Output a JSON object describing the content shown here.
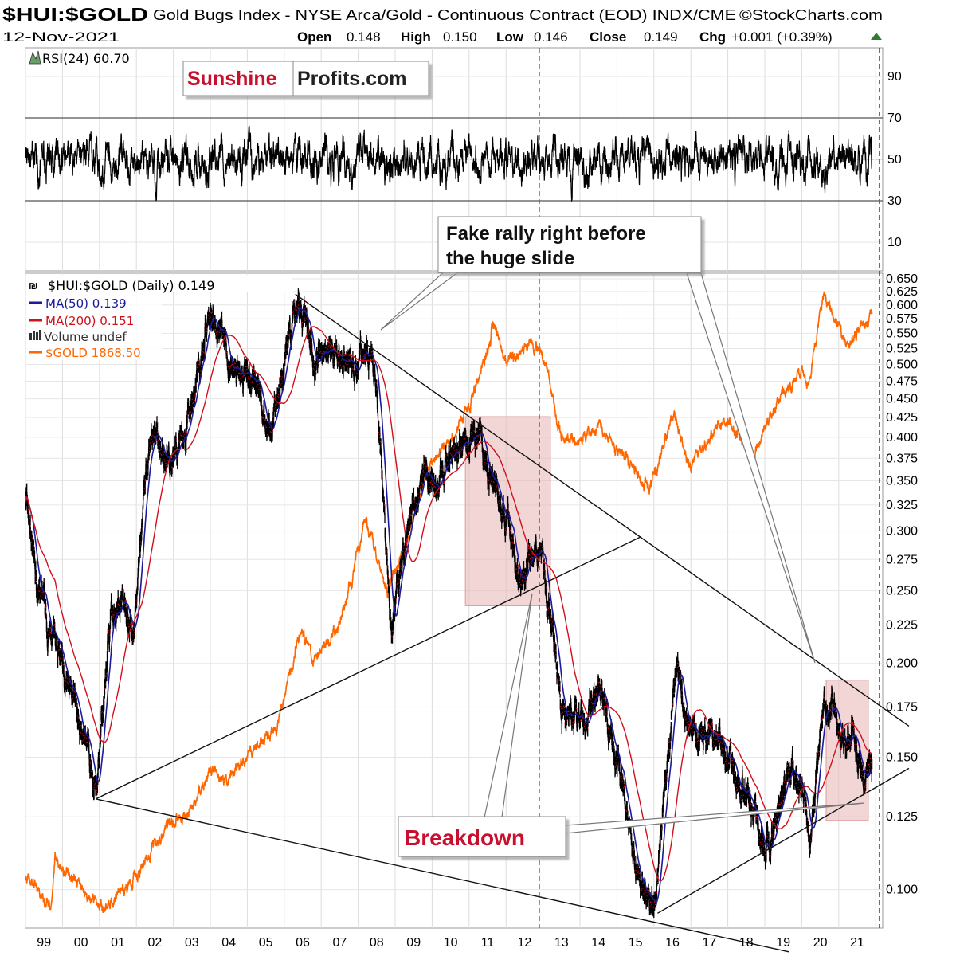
{
  "header": {
    "symbol": "$HUI:$GOLD",
    "description": "Gold Bugs Index - NYSE Arca/Gold - Continuous Contract (EOD) INDX/CME",
    "copyright": "©StockCharts.com",
    "date": "12-Nov-2021",
    "open_label": "Open",
    "open": "0.148",
    "high_label": "High",
    "high": "0.150",
    "low_label": "Low",
    "low": "0.146",
    "close_label": "Close",
    "close": "0.149",
    "chg_label": "Chg",
    "chg": "+0.001 (+0.39%)",
    "chg_icon": "triangle-up-icon"
  },
  "watermark": {
    "part1": "Sunshine",
    "part2": "Profits.com"
  },
  "colors": {
    "price": "#000000",
    "ma50": "#1a1a9c",
    "ma200": "#d0101c",
    "gold": "#ff6600",
    "highlight": "#e8b4b4",
    "annotation_red": "#c8102e",
    "positive": "#2e7d32"
  },
  "chart_data": [
    {
      "type": "line",
      "panel": "rsi",
      "legend": "RSI(24) 60.70",
      "current": 60.7,
      "yticks": [
        "90",
        "70",
        "50",
        "30",
        "10"
      ],
      "reference_lines": [
        70,
        50,
        30
      ],
      "ylim": [
        0,
        100
      ]
    },
    {
      "type": "line",
      "panel": "price",
      "scale": "log",
      "legend": [
        {
          "label": "$HUI:$GOLD (Daily) 0.149",
          "color": "#000000"
        },
        {
          "label": "MA(50) 0.139",
          "color": "#1a1a9c"
        },
        {
          "label": "MA(200) 0.151",
          "color": "#d0101c"
        },
        {
          "label": "Volume undef",
          "color": "#333333"
        },
        {
          "label": "$GOLD 1868.50",
          "color": "#ff6600"
        }
      ],
      "legend_placement": "top-left",
      "xticks": [
        "99",
        "00",
        "01",
        "02",
        "03",
        "04",
        "05",
        "06",
        "07",
        "08",
        "09",
        "10",
        "11",
        "12",
        "13",
        "14",
        "15",
        "16",
        "17",
        "18",
        "19",
        "20",
        "21"
      ],
      "yticks": [
        "0.650",
        "0.625",
        "0.600",
        "0.575",
        "0.550",
        "0.525",
        "0.500",
        "0.475",
        "0.450",
        "0.425",
        "0.400",
        "0.375",
        "0.350",
        "0.325",
        "0.300",
        "0.275",
        "0.250",
        "0.225",
        "0.200",
        "0.175",
        "0.150",
        "0.125",
        "0.100"
      ],
      "ylim": [
        0.09,
        0.65
      ],
      "xlim": [
        1999.0,
        2021.9
      ],
      "hui_gold": [
        [
          1999.0,
          0.34
        ],
        [
          1999.3,
          0.26
        ],
        [
          1999.6,
          0.22
        ],
        [
          2000.0,
          0.2
        ],
        [
          2000.4,
          0.17
        ],
        [
          2000.9,
          0.135
        ],
        [
          2001.3,
          0.22
        ],
        [
          2001.6,
          0.24
        ],
        [
          2001.9,
          0.22
        ],
        [
          2002.4,
          0.42
        ],
        [
          2002.7,
          0.38
        ],
        [
          2003.0,
          0.38
        ],
        [
          2003.5,
          0.43
        ],
        [
          2004.0,
          0.6
        ],
        [
          2004.3,
          0.55
        ],
        [
          2004.8,
          0.48
        ],
        [
          2005.3,
          0.47
        ],
        [
          2005.6,
          0.41
        ],
        [
          2006.0,
          0.5
        ],
        [
          2006.4,
          0.62
        ],
        [
          2006.8,
          0.52
        ],
        [
          2007.3,
          0.53
        ],
        [
          2007.8,
          0.5
        ],
        [
          2008.2,
          0.52
        ],
        [
          2008.5,
          0.48
        ],
        [
          2008.9,
          0.21
        ],
        [
          2009.3,
          0.3
        ],
        [
          2009.8,
          0.36
        ],
        [
          2010.3,
          0.36
        ],
        [
          2010.8,
          0.39
        ],
        [
          2011.3,
          0.4
        ],
        [
          2011.8,
          0.33
        ],
        [
          2012.4,
          0.26
        ],
        [
          2012.8,
          0.29
        ],
        [
          2013.0,
          0.27
        ],
        [
          2013.5,
          0.18
        ],
        [
          2014.0,
          0.17
        ],
        [
          2014.6,
          0.18
        ],
        [
          2015.0,
          0.15
        ],
        [
          2015.6,
          0.1
        ],
        [
          2016.0,
          0.095
        ],
        [
          2016.6,
          0.2
        ],
        [
          2017.0,
          0.16
        ],
        [
          2017.5,
          0.165
        ],
        [
          2018.0,
          0.15
        ],
        [
          2018.7,
          0.125
        ],
        [
          2019.0,
          0.115
        ],
        [
          2019.5,
          0.135
        ],
        [
          2020.0,
          0.14
        ],
        [
          2020.2,
          0.11
        ],
        [
          2020.6,
          0.18
        ],
        [
          2021.0,
          0.16
        ],
        [
          2021.4,
          0.165
        ],
        [
          2021.7,
          0.135
        ],
        [
          2021.87,
          0.149
        ]
      ],
      "gold": [
        [
          1999.0,
          290
        ],
        [
          1999.7,
          260
        ],
        [
          1999.8,
          310
        ],
        [
          2000.5,
          280
        ],
        [
          2001.1,
          260
        ],
        [
          2001.8,
          280
        ],
        [
          2002.5,
          320
        ],
        [
          2003.0,
          350
        ],
        [
          2003.5,
          360
        ],
        [
          2004.0,
          410
        ],
        [
          2004.5,
          400
        ],
        [
          2005.0,
          430
        ],
        [
          2005.8,
          480
        ],
        [
          2006.4,
          650
        ],
        [
          2006.8,
          600
        ],
        [
          2007.5,
          670
        ],
        [
          2008.2,
          950
        ],
        [
          2008.8,
          750
        ],
        [
          2009.5,
          950
        ],
        [
          2009.9,
          1150
        ],
        [
          2010.5,
          1250
        ],
        [
          2011.0,
          1400
        ],
        [
          2011.7,
          1850
        ],
        [
          2012.0,
          1600
        ],
        [
          2012.7,
          1750
        ],
        [
          2013.0,
          1650
        ],
        [
          2013.5,
          1250
        ],
        [
          2014.0,
          1250
        ],
        [
          2014.5,
          1300
        ],
        [
          2015.0,
          1200
        ],
        [
          2015.9,
          1060
        ],
        [
          2016.5,
          1350
        ],
        [
          2017.0,
          1150
        ],
        [
          2017.7,
          1300
        ],
        [
          2018.0,
          1330
        ],
        [
          2018.7,
          1180
        ],
        [
          2019.0,
          1290
        ],
        [
          2019.6,
          1500
        ],
        [
          2020.0,
          1550
        ],
        [
          2020.2,
          1500
        ],
        [
          2020.6,
          2050
        ],
        [
          2021.2,
          1700
        ],
        [
          2021.5,
          1800
        ],
        [
          2021.87,
          1868.5
        ]
      ],
      "trendlines": [
        {
          "from": [
            2006.3,
            0.62
          ],
          "to": [
            2022.9,
            0.165
          ]
        },
        {
          "from": [
            2000.9,
            0.132
          ],
          "to": [
            2015.66,
            0.295
          ]
        },
        {
          "from": [
            2000.9,
            0.132
          ],
          "to": [
            2019.65,
            0.0826
          ]
        },
        {
          "from": [
            2016.1,
            0.093
          ],
          "to": [
            2022.9,
            0.145
          ]
        }
      ],
      "highlight_zones": [
        {
          "x": [
            2010.9,
            2013.2
          ],
          "y": [
            0.2386,
            0.426
          ]
        },
        {
          "x": [
            2020.66,
            2021.8
          ],
          "y": [
            0.1236,
            0.19
          ]
        }
      ],
      "vertical_markers": [
        2012.9,
        2022.1
      ],
      "annotations": [
        {
          "text_line1": "Fake rally right before",
          "text_line2": "the huge slide"
        },
        {
          "text": "Breakdown"
        }
      ]
    }
  ]
}
